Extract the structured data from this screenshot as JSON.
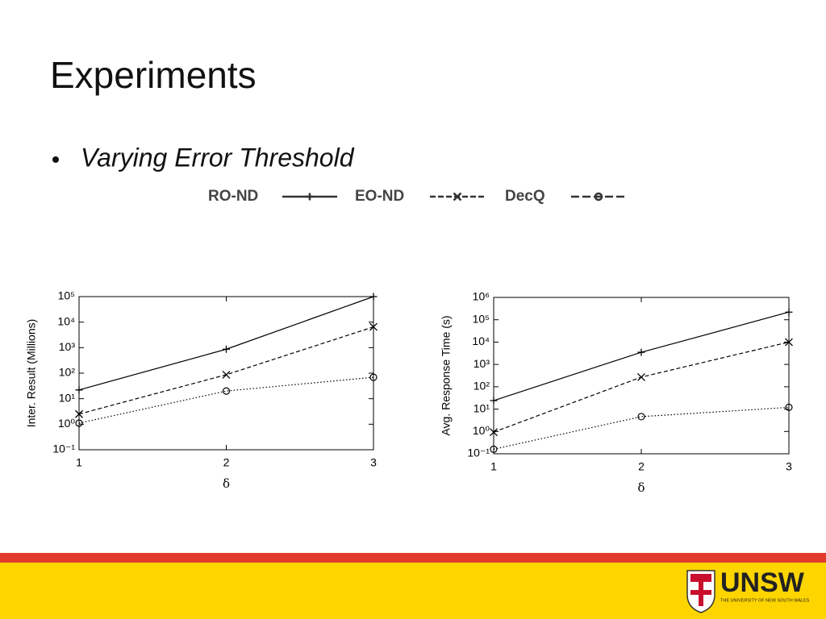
{
  "slide": {
    "title": "Experiments",
    "bullet": "Varying Error Threshold",
    "logo": "UNSW",
    "logo_sub": "THE UNIVERSITY OF NEW SOUTH WALES"
  },
  "chart_data": [
    {
      "type": "line",
      "xlabel": "δ",
      "ylabel": "Inter. Result (Millions)",
      "ylog": true,
      "x": [
        1,
        2,
        3
      ],
      "xlim": [
        1,
        3
      ],
      "xticks": [
        1,
        2,
        3
      ],
      "ylim": [
        0.1,
        100000
      ],
      "yticks": [
        {
          "value": 0.1,
          "label": "10⁻¹"
        },
        {
          "value": 1,
          "label": "10⁰"
        },
        {
          "value": 10,
          "label": "10¹"
        },
        {
          "value": 100,
          "label": "10²"
        },
        {
          "value": 1000,
          "label": "10³"
        },
        {
          "value": 10000,
          "label": "10⁴"
        },
        {
          "value": 100000,
          "label": "10⁵"
        }
      ],
      "series": [
        {
          "name": "RO-ND",
          "color": "#000000",
          "dash": "solid",
          "marker": "plus",
          "values": [
            22,
            870,
            100000
          ]
        },
        {
          "name": "EO-ND",
          "color": "#000000",
          "dash": "dashed",
          "marker": "cross",
          "values": [
            2.5,
            87,
            6500
          ]
        },
        {
          "name": "DecQ",
          "color": "#000000",
          "dash": "dotted",
          "marker": "circle",
          "values": [
            1.1,
            20,
            69
          ]
        }
      ]
    },
    {
      "type": "line",
      "xlabel": "δ",
      "ylabel": "Avg. Response Time (s)",
      "ylog": true,
      "x": [
        1,
        2,
        3
      ],
      "xlim": [
        1,
        3
      ],
      "xticks": [
        1,
        2,
        3
      ],
      "ylim": [
        0.1,
        1000000
      ],
      "yticks": [
        {
          "value": 0.1,
          "label": "10⁻¹"
        },
        {
          "value": 1,
          "label": "10⁰"
        },
        {
          "value": 10,
          "label": "10¹"
        },
        {
          "value": 100,
          "label": "10²"
        },
        {
          "value": 1000,
          "label": "10³"
        },
        {
          "value": 10000,
          "label": "10⁴"
        },
        {
          "value": 100000,
          "label": "10⁵"
        },
        {
          "value": 1000000,
          "label": "10⁶"
        }
      ],
      "series": [
        {
          "name": "RO-ND",
          "color": "#000000",
          "dash": "solid",
          "marker": "plus",
          "values": [
            24,
            3500,
            220000
          ]
        },
        {
          "name": "EO-ND",
          "color": "#000000",
          "dash": "dashed",
          "marker": "cross",
          "values": [
            0.93,
            270,
            10000
          ]
        },
        {
          "name": "DecQ",
          "color": "#000000",
          "dash": "dotted",
          "marker": "circle",
          "values": [
            0.16,
            4.6,
            12
          ]
        }
      ]
    }
  ]
}
